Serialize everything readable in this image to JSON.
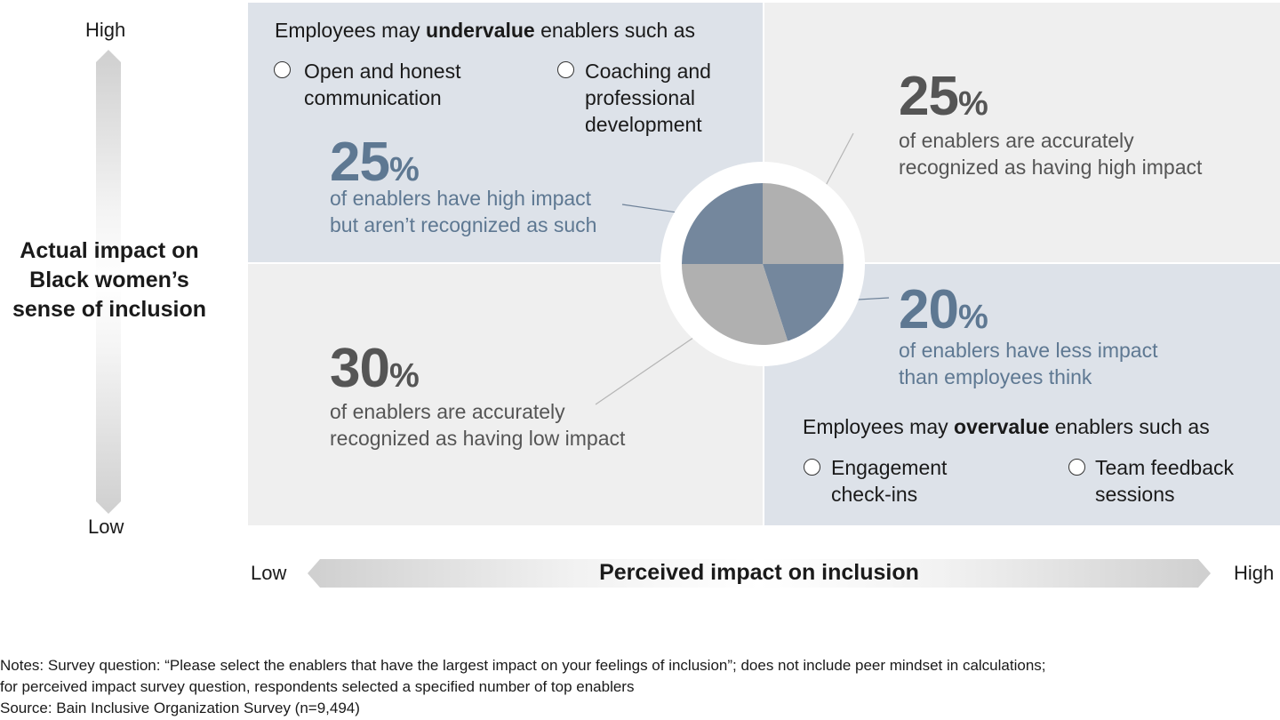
{
  "y_axis": {
    "title": "Actual impact on Black women’s sense of inclusion",
    "high": "High",
    "low": "Low"
  },
  "x_axis": {
    "title": "Perceived impact on inclusion",
    "low": "Low",
    "high": "High"
  },
  "top_left": {
    "intro_prefix": "Employees may ",
    "intro_bold": "undervalue",
    "intro_suffix": " enablers such as",
    "items": [
      "Open and honest communication",
      "Coaching and professional development"
    ],
    "item_lines": [
      [
        "Open and honest",
        "communication"
      ],
      [
        "Coaching and",
        "professional",
        "development"
      ]
    ],
    "stat_value": "25",
    "stat_unit": "%",
    "stat_text": [
      "of enablers have high impact",
      "but aren’t recognized as such"
    ]
  },
  "top_right": {
    "stat_value": "25",
    "stat_unit": "%",
    "stat_text": [
      "of enablers are accurately",
      "recognized as having high impact"
    ]
  },
  "bottom_left": {
    "stat_value": "30",
    "stat_unit": "%",
    "stat_text": [
      "of enablers are accurately",
      "recognized as having low impact"
    ]
  },
  "bottom_right": {
    "stat_value": "20",
    "stat_unit": "%",
    "stat_text": [
      "of enablers have less impact",
      "than employees think"
    ],
    "intro_prefix": "Employees may ",
    "intro_bold": "overvalue",
    "intro_suffix": " enablers such as",
    "item_lines": [
      [
        "Engagement",
        "check-ins"
      ],
      [
        "Team feedback",
        "sessions"
      ]
    ]
  },
  "notes": [
    "Notes: Survey question: “Please select the enablers that have the largest impact on your feelings of inclusion”; does not include peer mindset in calculations;",
    "for perceived impact survey question, respondents selected a specified number of top enablers",
    "Source: Bain Inclusive Organization Survey (n=9,494)"
  ],
  "colors": {
    "blue_slice": "#74879d",
    "gray_slice": "#b0b0b0",
    "blue_text": "#5e7892",
    "gray_text": "#555555"
  },
  "chart_data": {
    "type": "pie",
    "title": "",
    "slices": [
      {
        "label": "of enablers are accurately recognized as having high impact",
        "value": 25,
        "color": "#b0b0b0"
      },
      {
        "label": "of enablers have less impact than employees think",
        "value": 20,
        "color": "#74879d"
      },
      {
        "label": "of enablers are accurately recognized as having low impact",
        "value": 30,
        "color": "#b0b0b0"
      },
      {
        "label": "of enablers have high impact but aren’t recognized as such",
        "value": 25,
        "color": "#74879d"
      }
    ]
  }
}
